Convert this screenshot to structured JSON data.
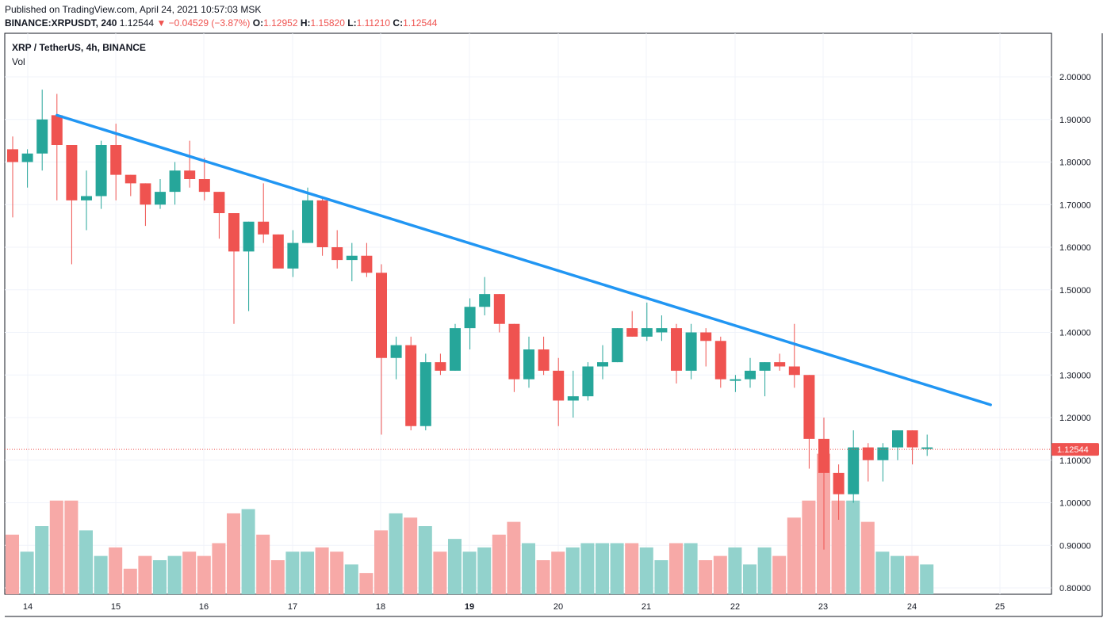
{
  "header": {
    "published": "Published on TradingView.com, April 24, 2021 10:57:03 MSK",
    "symbol": "BINANCE:XRPUSDT, 240",
    "last": "1.12544",
    "change": "▼ −0.04529 (−3.87%)",
    "o_label": "O:",
    "o_value": "1.12952",
    "h_label": "H:",
    "h_value": "1.15820",
    "l_label": "L:",
    "l_value": "1.11210",
    "c_label": "C:",
    "c_value": "1.12544"
  },
  "legend": {
    "title": "XRP / TetherUS, 4h, BINANCE",
    "vol": "Vol"
  },
  "colors": {
    "up": "#26a69a",
    "down": "#ef5350",
    "up_vol": "#92d2cc",
    "down_vol": "#f7a9a7",
    "trendline": "#2196f3",
    "grid": "#f0f3fa"
  },
  "chart_data": {
    "type": "candlestick",
    "ylim": [
      0.77,
      2.1
    ],
    "yticks": [
      "2.00000",
      "1.90000",
      "1.80000",
      "1.70000",
      "1.60000",
      "1.50000",
      "1.40000",
      "1.30000",
      "1.20000",
      "1.10000",
      "1.00000",
      "0.90000",
      "0.80000"
    ],
    "xticks": [
      "14",
      "15",
      "16",
      "17",
      "18",
      "19",
      "20",
      "21",
      "22",
      "23",
      "24",
      "25"
    ],
    "last_price_label": "1.12544",
    "candles": [
      {
        "o": 1.83,
        "h": 1.86,
        "l": 1.67,
        "c": 1.8,
        "v": 0.91
      },
      {
        "o": 1.8,
        "h": 1.83,
        "l": 1.74,
        "c": 1.82,
        "v": 0.87
      },
      {
        "o": 1.82,
        "h": 1.97,
        "l": 1.78,
        "c": 1.9,
        "v": 0.93
      },
      {
        "o": 1.91,
        "h": 1.96,
        "l": 1.71,
        "c": 1.84,
        "v": 0.99
      },
      {
        "o": 1.84,
        "h": 1.84,
        "l": 1.56,
        "c": 1.71,
        "v": 0.99
      },
      {
        "o": 1.71,
        "h": 1.78,
        "l": 1.64,
        "c": 1.72,
        "v": 0.92
      },
      {
        "o": 1.72,
        "h": 1.85,
        "l": 1.69,
        "c": 1.84,
        "v": 0.86
      },
      {
        "o": 1.84,
        "h": 1.89,
        "l": 1.71,
        "c": 1.77,
        "v": 0.88
      },
      {
        "o": 1.77,
        "h": 1.77,
        "l": 1.72,
        "c": 1.75,
        "v": 0.83
      },
      {
        "o": 1.75,
        "h": 1.75,
        "l": 1.65,
        "c": 1.7,
        "v": 0.86
      },
      {
        "o": 1.7,
        "h": 1.76,
        "l": 1.69,
        "c": 1.73,
        "v": 0.85
      },
      {
        "o": 1.73,
        "h": 1.8,
        "l": 1.7,
        "c": 1.78,
        "v": 0.86
      },
      {
        "o": 1.78,
        "h": 1.85,
        "l": 1.74,
        "c": 1.76,
        "v": 0.87
      },
      {
        "o": 1.76,
        "h": 1.81,
        "l": 1.71,
        "c": 1.73,
        "v": 0.86
      },
      {
        "o": 1.73,
        "h": 1.73,
        "l": 1.62,
        "c": 1.68,
        "v": 0.89
      },
      {
        "o": 1.68,
        "h": 1.68,
        "l": 1.42,
        "c": 1.59,
        "v": 0.96
      },
      {
        "o": 1.59,
        "h": 1.66,
        "l": 1.45,
        "c": 1.66,
        "v": 0.97
      },
      {
        "o": 1.66,
        "h": 1.75,
        "l": 1.61,
        "c": 1.63,
        "v": 0.91
      },
      {
        "o": 1.63,
        "h": 1.63,
        "l": 1.55,
        "c": 1.55,
        "v": 0.85
      },
      {
        "o": 1.55,
        "h": 1.64,
        "l": 1.53,
        "c": 1.61,
        "v": 0.87
      },
      {
        "o": 1.61,
        "h": 1.74,
        "l": 1.61,
        "c": 1.71,
        "v": 0.87
      },
      {
        "o": 1.71,
        "h": 1.72,
        "l": 1.58,
        "c": 1.6,
        "v": 0.88
      },
      {
        "o": 1.6,
        "h": 1.64,
        "l": 1.55,
        "c": 1.57,
        "v": 0.87
      },
      {
        "o": 1.57,
        "h": 1.61,
        "l": 1.52,
        "c": 1.58,
        "v": 0.84
      },
      {
        "o": 1.58,
        "h": 1.61,
        "l": 1.53,
        "c": 1.54,
        "v": 0.82
      },
      {
        "o": 1.54,
        "h": 1.56,
        "l": 1.16,
        "c": 1.34,
        "v": 0.92
      },
      {
        "o": 1.34,
        "h": 1.39,
        "l": 1.29,
        "c": 1.37,
        "v": 0.96
      },
      {
        "o": 1.37,
        "h": 1.39,
        "l": 1.17,
        "c": 1.18,
        "v": 0.95
      },
      {
        "o": 1.18,
        "h": 1.35,
        "l": 1.17,
        "c": 1.33,
        "v": 0.93
      },
      {
        "o": 1.33,
        "h": 1.35,
        "l": 1.3,
        "c": 1.31,
        "v": 0.87
      },
      {
        "o": 1.31,
        "h": 1.42,
        "l": 1.31,
        "c": 1.41,
        "v": 0.9
      },
      {
        "o": 1.41,
        "h": 1.48,
        "l": 1.36,
        "c": 1.46,
        "v": 0.87
      },
      {
        "o": 1.46,
        "h": 1.53,
        "l": 1.44,
        "c": 1.49,
        "v": 0.88
      },
      {
        "o": 1.49,
        "h": 1.49,
        "l": 1.4,
        "c": 1.42,
        "v": 0.91
      },
      {
        "o": 1.42,
        "h": 1.42,
        "l": 1.26,
        "c": 1.29,
        "v": 0.94
      },
      {
        "o": 1.29,
        "h": 1.39,
        "l": 1.27,
        "c": 1.36,
        "v": 0.89
      },
      {
        "o": 1.36,
        "h": 1.39,
        "l": 1.3,
        "c": 1.31,
        "v": 0.85
      },
      {
        "o": 1.31,
        "h": 1.34,
        "l": 1.18,
        "c": 1.24,
        "v": 0.87
      },
      {
        "o": 1.24,
        "h": 1.31,
        "l": 1.2,
        "c": 1.25,
        "v": 0.88
      },
      {
        "o": 1.25,
        "h": 1.33,
        "l": 1.24,
        "c": 1.32,
        "v": 0.89
      },
      {
        "o": 1.32,
        "h": 1.37,
        "l": 1.29,
        "c": 1.33,
        "v": 0.89
      },
      {
        "o": 1.33,
        "h": 1.41,
        "l": 1.33,
        "c": 1.41,
        "v": 0.89
      },
      {
        "o": 1.41,
        "h": 1.45,
        "l": 1.39,
        "c": 1.39,
        "v": 0.89
      },
      {
        "o": 1.39,
        "h": 1.47,
        "l": 1.38,
        "c": 1.41,
        "v": 0.88
      },
      {
        "o": 1.4,
        "h": 1.44,
        "l": 1.38,
        "c": 1.41,
        "v": 0.85
      },
      {
        "o": 1.41,
        "h": 1.42,
        "l": 1.28,
        "c": 1.31,
        "v": 0.89
      },
      {
        "o": 1.31,
        "h": 1.42,
        "l": 1.29,
        "c": 1.4,
        "v": 0.89
      },
      {
        "o": 1.4,
        "h": 1.41,
        "l": 1.32,
        "c": 1.38,
        "v": 0.85
      },
      {
        "o": 1.38,
        "h": 1.39,
        "l": 1.27,
        "c": 1.29,
        "v": 0.86
      },
      {
        "o": 1.29,
        "h": 1.3,
        "l": 1.26,
        "c": 1.29,
        "v": 0.88
      },
      {
        "o": 1.29,
        "h": 1.34,
        "l": 1.27,
        "c": 1.31,
        "v": 0.84
      },
      {
        "o": 1.31,
        "h": 1.33,
        "l": 1.25,
        "c": 1.33,
        "v": 0.88
      },
      {
        "o": 1.33,
        "h": 1.35,
        "l": 1.31,
        "c": 1.32,
        "v": 0.86
      },
      {
        "o": 1.32,
        "h": 1.42,
        "l": 1.27,
        "c": 1.3,
        "v": 0.95
      },
      {
        "o": 1.3,
        "h": 1.3,
        "l": 1.08,
        "c": 1.15,
        "v": 0.99
      },
      {
        "o": 1.15,
        "h": 1.2,
        "l": 0.89,
        "c": 1.07,
        "v": 1.1
      },
      {
        "o": 1.07,
        "h": 1.09,
        "l": 0.96,
        "c": 1.02,
        "v": 0.99
      },
      {
        "o": 1.02,
        "h": 1.17,
        "l": 1.0,
        "c": 1.13,
        "v": 0.99
      },
      {
        "o": 1.13,
        "h": 1.14,
        "l": 1.05,
        "c": 1.1,
        "v": 0.94
      },
      {
        "o": 1.1,
        "h": 1.14,
        "l": 1.05,
        "c": 1.13,
        "v": 0.87
      },
      {
        "o": 1.13,
        "h": 1.17,
        "l": 1.1,
        "c": 1.17,
        "v": 0.86
      },
      {
        "o": 1.17,
        "h": 1.17,
        "l": 1.09,
        "c": 1.13,
        "v": 0.86
      },
      {
        "o": 1.13,
        "h": 1.16,
        "l": 1.11,
        "c": 1.13,
        "v": 0.84
      }
    ],
    "trendline": {
      "from": {
        "candle": 3,
        "price": 1.91
      },
      "to": {
        "candle": 66.3,
        "price": 1.23
      }
    }
  }
}
